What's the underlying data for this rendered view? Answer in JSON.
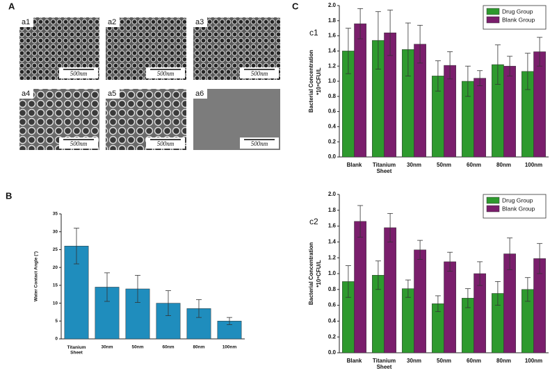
{
  "panel_labels": [
    "A",
    "B",
    "C"
  ],
  "images": [
    {
      "label": "a1",
      "scale": "500nm"
    },
    {
      "label": "a2",
      "scale": "500nm"
    },
    {
      "label": "a3",
      "scale": "500nm"
    },
    {
      "label": "a4",
      "scale": "500nm"
    },
    {
      "label": "a5",
      "scale": "500nm"
    },
    {
      "label": "a6",
      "scale": "500nm"
    }
  ],
  "chart_data": [
    {
      "type": "bar",
      "ylabel": [
        "Water Contact Angle (°)"
      ],
      "categories": [
        "Titanium Sheet",
        "30nm",
        "50nm",
        "60nm",
        "80nm",
        "100nm"
      ],
      "series": [
        {
          "color": "#1f8dbd",
          "values": [
            26,
            14.5,
            14,
            10,
            8.5,
            5
          ],
          "errors": [
            5,
            4,
            3.8,
            3.5,
            2.5,
            1
          ]
        }
      ],
      "ylim": [
        0,
        35
      ],
      "yticks": [
        0,
        5,
        10,
        15,
        20,
        25,
        30,
        35
      ]
    },
    {
      "type": "bar",
      "label": "c1",
      "ylabel": [
        "Bacterial Concentration",
        "*10⁹CFU/L"
      ],
      "categories": [
        "Blank",
        "Titanium Sheet",
        "30nm",
        "50nm",
        "60nm",
        "80nm",
        "100nm"
      ],
      "series": [
        {
          "name": "Drug Group",
          "color": "#2e9a2e",
          "values": [
            1.4,
            1.54,
            1.42,
            1.07,
            1.0,
            1.22,
            1.13
          ],
          "errors": [
            0.3,
            0.38,
            0.35,
            0.2,
            0.2,
            0.26,
            0.24
          ]
        },
        {
          "name": "Blank Group",
          "color": "#7a1e6c",
          "values": [
            1.76,
            1.64,
            1.49,
            1.21,
            1.04,
            1.2,
            1.39
          ],
          "errors": [
            0.2,
            0.3,
            0.25,
            0.18,
            0.1,
            0.13,
            0.19
          ]
        }
      ],
      "ylim": [
        0,
        2.0
      ],
      "yticks": [
        {
          "value": 0,
          "label": "0.0"
        },
        0.2,
        0.4,
        0.6,
        0.8,
        {
          "value": 1,
          "label": "1.0"
        },
        1.2,
        1.4,
        1.6,
        1.8,
        {
          "value": 2,
          "label": "2.0"
        }
      ],
      "legend": "upper right"
    },
    {
      "type": "bar",
      "label": "c2",
      "ylabel": [
        "Bacterial Concentration",
        "*10⁹CFU/L"
      ],
      "categories": [
        "Blank",
        "Titanium Sheet",
        "30nm",
        "50nm",
        "60nm",
        "80nm",
        "100nm"
      ],
      "series": [
        {
          "name": "Drug Group",
          "color": "#2e9a2e",
          "values": [
            0.9,
            0.98,
            0.81,
            0.62,
            0.69,
            0.75,
            0.8
          ],
          "errors": [
            0.2,
            0.18,
            0.11,
            0.1,
            0.12,
            0.15,
            0.15
          ]
        },
        {
          "name": "Blank Group",
          "color": "#7a1e6c",
          "values": [
            1.66,
            1.58,
            1.3,
            1.15,
            1.0,
            1.25,
            1.19
          ],
          "errors": [
            0.2,
            0.18,
            0.12,
            0.12,
            0.15,
            0.2,
            0.19
          ]
        }
      ],
      "ylim": [
        0,
        2.0
      ],
      "yticks": [
        {
          "value": 0,
          "label": "0.0"
        },
        0.2,
        0.4,
        0.6,
        0.8,
        {
          "value": 1,
          "label": "1.0"
        },
        1.2,
        1.4,
        1.6,
        1.8,
        {
          "value": 2,
          "label": "2.0"
        }
      ],
      "legend": "upper right"
    }
  ]
}
